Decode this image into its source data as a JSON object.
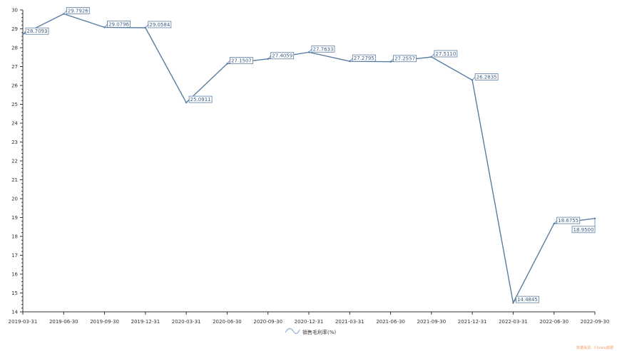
{
  "chart_data": {
    "type": "line",
    "title": "",
    "xlabel": "",
    "ylabel": "",
    "categories": [
      "2019-03-31",
      "2019-06-30",
      "2019-09-30",
      "2019-12-31",
      "2020-03-31",
      "2020-06-30",
      "2020-09-30",
      "2020-12-31",
      "2021-03-31",
      "2021-06-30",
      "2021-09-30",
      "2021-12-31",
      "2022-03-31",
      "2022-06-30",
      "2022-09-30"
    ],
    "series": [
      {
        "name": "销售毛利率(%)",
        "values": [
          28.7093,
          29.7926,
          29.0796,
          29.0584,
          25.0911,
          27.1507,
          27.4059,
          27.7633,
          27.2795,
          27.2557,
          27.511,
          26.2835,
          14.4845,
          18.6755,
          18.95
        ],
        "labels": [
          "28.7093",
          "29.7926",
          "29.0796",
          "29.0584",
          "25.0911",
          "27.1507",
          "27.4059",
          "27.7633",
          "27.2795",
          "27.2557",
          "27.5110",
          "26.2835",
          "14.4845",
          "18.6755",
          "18.9500"
        ]
      }
    ],
    "ylim": [
      14,
      30
    ],
    "yticks": [
      "14",
      "15",
      "16",
      "17",
      "18",
      "19",
      "20",
      "21",
      "22",
      "23",
      "24",
      "25",
      "26",
      "27",
      "28",
      "29",
      "30"
    ],
    "grid": false,
    "legend": "bottom-center",
    "colors": {
      "line": "#5b7da3",
      "label_text": "#3d5f86",
      "legend_icon": "#8fb0d6",
      "watermark": "#f0a070"
    }
  },
  "watermark": "数据来源：Choice数据"
}
